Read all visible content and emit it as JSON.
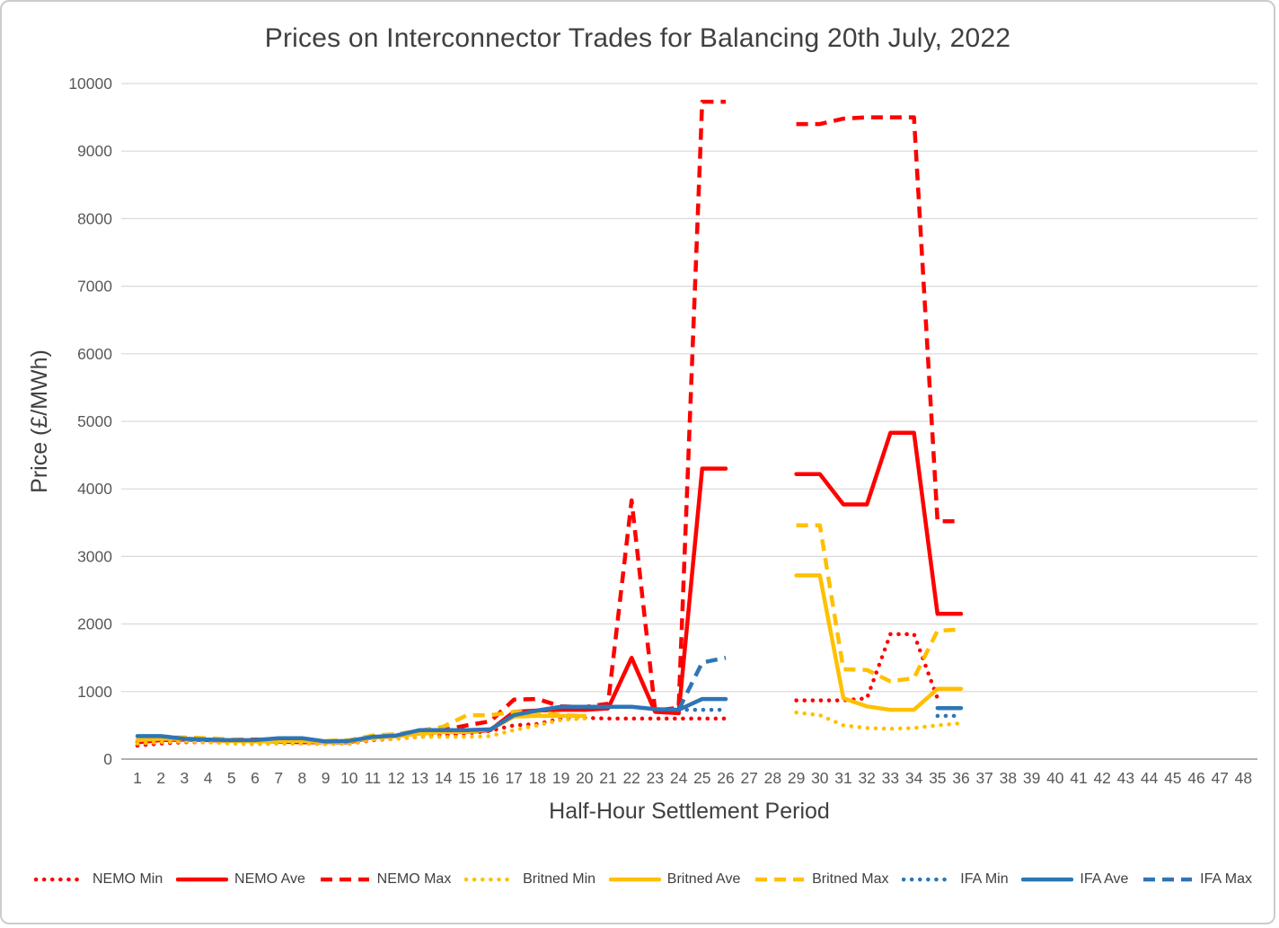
{
  "chart_data": {
    "type": "line",
    "title": "Prices on Interconnector Trades for Balancing 20th July, 2022",
    "xlabel": "Half-Hour Settlement Period",
    "ylabel": "Price (£/MWh)",
    "xlim": [
      1,
      48
    ],
    "ylim": [
      0,
      10000
    ],
    "grid": true,
    "legend_position": "bottom",
    "y_ticks": [
      0,
      1000,
      2000,
      3000,
      4000,
      5000,
      6000,
      7000,
      8000,
      9000,
      10000
    ],
    "x_ticks": [
      1,
      2,
      3,
      4,
      5,
      6,
      7,
      8,
      9,
      10,
      11,
      12,
      13,
      14,
      15,
      16,
      17,
      18,
      19,
      20,
      21,
      22,
      23,
      24,
      25,
      26,
      27,
      28,
      29,
      30,
      31,
      32,
      33,
      34,
      35,
      36,
      37,
      38,
      39,
      40,
      41,
      42,
      43,
      44,
      45,
      46,
      47,
      48
    ],
    "colors": {
      "nemo": "#FF0000",
      "britned": "#FFC000",
      "ifa": "#2E75B6",
      "gridline": "#D9D9D9",
      "axis_line": "#A6A6A6",
      "tick_text": "#595959",
      "title_text": "#404040"
    },
    "series": [
      {
        "name": "NEMO Min",
        "color": "#FF0000",
        "style": "dotted",
        "values": [
          200,
          230,
          250,
          250,
          240,
          240,
          230,
          230,
          230,
          230,
          280,
          300,
          330,
          350,
          380,
          420,
          500,
          520,
          600,
          610,
          600,
          600,
          600,
          600,
          600,
          600,
          null,
          null,
          870,
          870,
          870,
          900,
          1850,
          1850,
          900,
          null
        ]
      },
      {
        "name": "NEMO Ave",
        "color": "#FF0000",
        "style": "solid",
        "values": [
          250,
          280,
          290,
          280,
          270,
          270,
          260,
          250,
          250,
          250,
          320,
          340,
          380,
          400,
          400,
          430,
          700,
          720,
          730,
          730,
          750,
          1500,
          700,
          680,
          4300,
          4300,
          null,
          null,
          4220,
          4220,
          3770,
          3770,
          4830,
          4830,
          2150,
          2150
        ]
      },
      {
        "name": "NEMO Max",
        "color": "#FF0000",
        "style": "dashed",
        "values": [
          280,
          300,
          310,
          300,
          290,
          290,
          280,
          270,
          260,
          270,
          340,
          360,
          400,
          430,
          500,
          560,
          880,
          890,
          780,
          770,
          820,
          3830,
          720,
          760,
          9730,
          9730,
          null,
          null,
          9400,
          9400,
          9480,
          9500,
          9500,
          9500,
          3520,
          3520
        ]
      },
      {
        "name": "Britned Min",
        "color": "#FFC000",
        "style": "dotted",
        "values": [
          230,
          250,
          260,
          250,
          230,
          220,
          230,
          230,
          220,
          230,
          290,
          300,
          330,
          330,
          330,
          340,
          430,
          500,
          580,
          600,
          null,
          null,
          null,
          null,
          null,
          null,
          null,
          null,
          690,
          650,
          500,
          460,
          450,
          460,
          500,
          530
        ]
      },
      {
        "name": "Britned Ave",
        "color": "#FFC000",
        "style": "solid",
        "values": [
          280,
          300,
          300,
          290,
          270,
          260,
          270,
          270,
          250,
          260,
          320,
          340,
          380,
          400,
          400,
          440,
          630,
          640,
          640,
          640,
          null,
          null,
          null,
          null,
          null,
          null,
          null,
          null,
          2720,
          2720,
          900,
          780,
          730,
          730,
          1040,
          1040
        ]
      },
      {
        "name": "Britned Max",
        "color": "#FFC000",
        "style": "dashed",
        "values": [
          300,
          320,
          320,
          310,
          290,
          280,
          290,
          280,
          270,
          280,
          350,
          370,
          420,
          480,
          650,
          650,
          700,
          700,
          650,
          640,
          null,
          null,
          null,
          null,
          null,
          null,
          null,
          null,
          3460,
          3460,
          1330,
          1320,
          1150,
          1200,
          1900,
          1920
        ]
      },
      {
        "name": "IFA Min",
        "color": "#2E75B6",
        "style": "dotted",
        "values": [
          null,
          null,
          null,
          null,
          null,
          null,
          null,
          null,
          null,
          null,
          null,
          null,
          null,
          null,
          null,
          null,
          null,
          null,
          null,
          null,
          null,
          null,
          null,
          730,
          730,
          730,
          null,
          null,
          null,
          null,
          null,
          null,
          null,
          null,
          640,
          640
        ]
      },
      {
        "name": "IFA Ave",
        "color": "#2E75B6",
        "style": "solid",
        "values": [
          340,
          340,
          300,
          290,
          280,
          280,
          310,
          310,
          260,
          270,
          330,
          350,
          430,
          430,
          430,
          440,
          650,
          720,
          775,
          775,
          775,
          775,
          740,
          730,
          890,
          890,
          null,
          null,
          null,
          null,
          null,
          null,
          null,
          null,
          755,
          755
        ]
      },
      {
        "name": "IFA Max",
        "color": "#2E75B6",
        "style": "dashed",
        "values": [
          null,
          null,
          null,
          null,
          null,
          null,
          null,
          null,
          null,
          null,
          null,
          null,
          null,
          null,
          null,
          null,
          null,
          null,
          null,
          null,
          null,
          null,
          null,
          730,
          1430,
          1500,
          null,
          null,
          null,
          null,
          null,
          null,
          null,
          null,
          null,
          null
        ]
      }
    ]
  }
}
